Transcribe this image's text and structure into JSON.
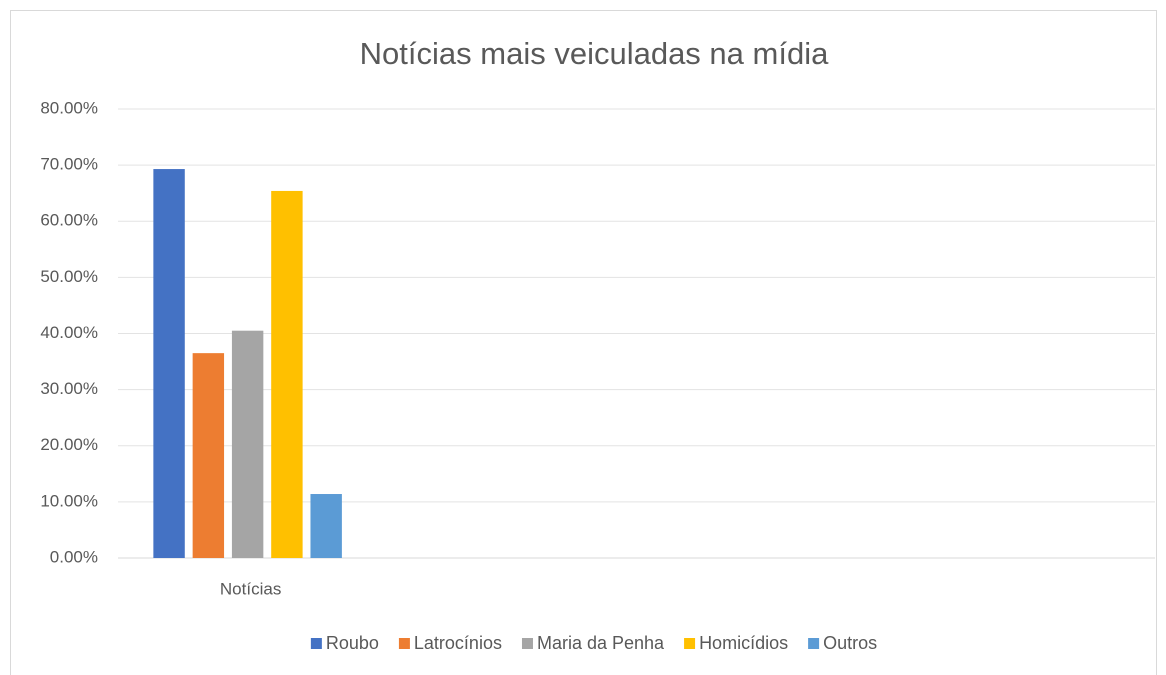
{
  "chart_data": {
    "type": "bar",
    "title": "Notícias mais veiculadas na mídia",
    "categories": [
      "Notícias",
      null,
      null,
      null
    ],
    "series": [
      {
        "name": "Roubo",
        "color": "#4472c4",
        "values": [
          69.3,
          null,
          null,
          null
        ]
      },
      {
        "name": "Latrocínios",
        "color": "#ed7d31",
        "values": [
          36.5,
          null,
          null,
          null
        ]
      },
      {
        "name": "Maria da Penha",
        "color": "#a5a5a5",
        "values": [
          40.5,
          null,
          null,
          null
        ]
      },
      {
        "name": "Homicídios",
        "color": "#ffc000",
        "values": [
          65.4,
          null,
          null,
          null
        ]
      },
      {
        "name": "Outros",
        "color": "#5b9bd5",
        "values": [
          11.4,
          null,
          null,
          null
        ]
      }
    ],
    "ylim": [
      0,
      80
    ],
    "yticks": [
      {
        "value": 0,
        "label": "0.00%"
      },
      {
        "value": 10,
        "label": "10.00%"
      },
      {
        "value": 20,
        "label": "20.00%"
      },
      {
        "value": 30,
        "label": "30.00%"
      },
      {
        "value": 40,
        "label": "40.00%"
      },
      {
        "value": 50,
        "label": "50.00%"
      },
      {
        "value": 60,
        "label": "60.00%"
      },
      {
        "value": 70,
        "label": "70.00%"
      },
      {
        "value": 80,
        "label": "80.00%"
      }
    ],
    "grid": true,
    "legend": "bottom"
  }
}
